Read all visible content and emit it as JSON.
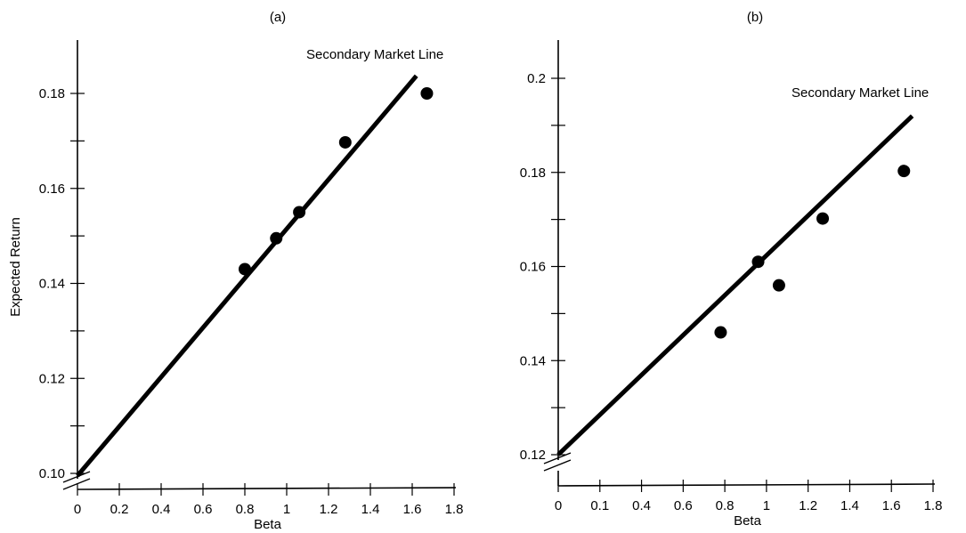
{
  "chart_data": [
    {
      "type": "scatter",
      "title": "(a)",
      "xlabel": "Beta",
      "ylabel": "Expected Return",
      "x_ticks": [
        "0",
        "0.2",
        "0.4",
        "0.6",
        "0.8",
        "1",
        "1.2",
        "1.4",
        "1.6",
        "1.8"
      ],
      "xlim": [
        0,
        1.8
      ],
      "y_ticks": [
        "0.10",
        "0.12",
        "0.14",
        "0.16",
        "0.18"
      ],
      "ylim": [
        0.1,
        0.18
      ],
      "axis_break": true,
      "series": [
        {
          "x": [
            0.8,
            0.95,
            1.06,
            1.28,
            1.67
          ],
          "y": [
            0.143,
            0.1495,
            0.155,
            0.1697,
            0.18
          ]
        }
      ],
      "line": {
        "label": "Secondary Market Line",
        "x": [
          0,
          1.62
        ],
        "y": [
          0.0995,
          0.1837
        ]
      }
    },
    {
      "type": "scatter",
      "title": "(b)",
      "xlabel": "Beta",
      "ylabel": "",
      "x_ticks": [
        "0",
        "0.1",
        "0.4",
        "0.6",
        "0.8",
        "1",
        "1.2",
        "1.4",
        "1.6",
        "1.8"
      ],
      "xlim": [
        0,
        1.8
      ],
      "y_ticks": [
        "0.12",
        "0.14",
        "0.16",
        "0.18",
        "0.2"
      ],
      "ylim": [
        0.12,
        0.2
      ],
      "axis_break": true,
      "series": [
        {
          "x": [
            0.78,
            0.96,
            1.06,
            1.27,
            1.66
          ],
          "y": [
            0.146,
            0.161,
            0.156,
            0.1702,
            0.1803
          ]
        }
      ],
      "line": {
        "label": "Secondary Market Line",
        "x": [
          0,
          1.7
        ],
        "y": [
          0.12,
          0.192
        ]
      }
    }
  ]
}
